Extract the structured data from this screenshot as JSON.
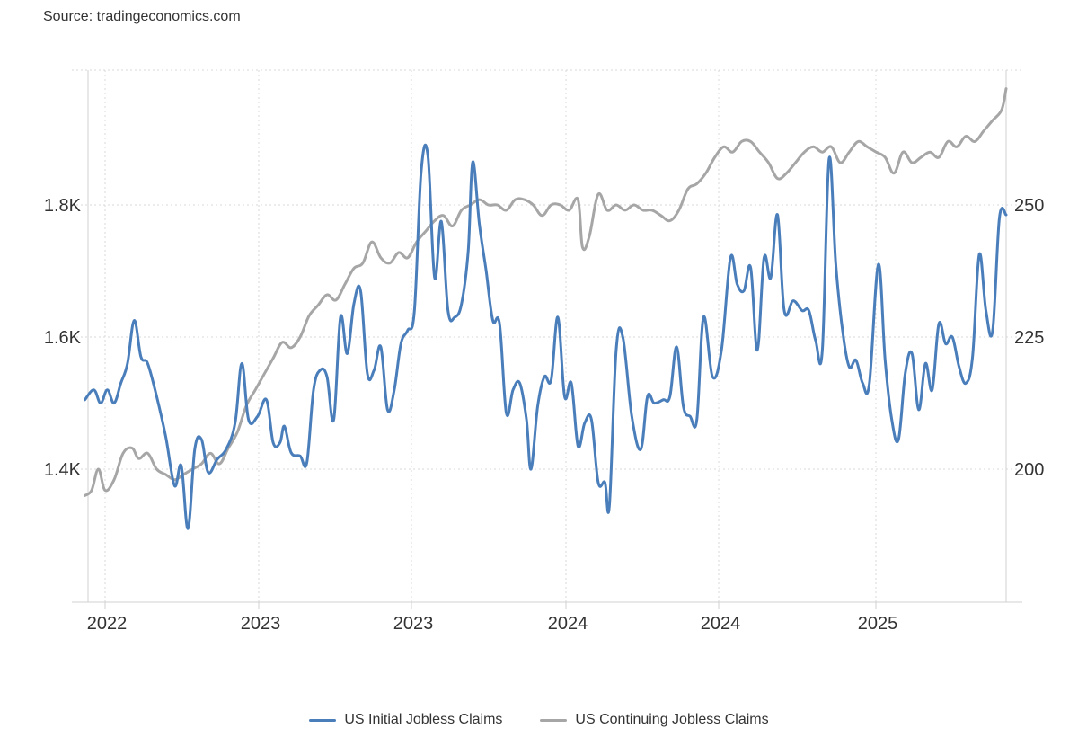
{
  "source": "Source: tradingeconomics.com",
  "chart_data": {
    "type": "line",
    "title": "",
    "xlabel": "",
    "ylabel": "",
    "x_tick_labels": [
      "2022",
      "2023",
      "2023",
      "2024",
      "2024",
      "2025"
    ],
    "y_left_ticks": [
      "1.4K",
      "1.6K",
      "1.8K"
    ],
    "y_right_ticks": [
      "200",
      "225",
      "250"
    ],
    "y_left_range": [
      1200,
      2010
    ],
    "y_right_range": [
      175,
      275
    ],
    "x_range": [
      2021.9,
      2025.85
    ],
    "grid": true,
    "legend_position": "bottom",
    "series": [
      {
        "name": "US Initial Jobless Claims",
        "axis": "left",
        "color": "#4a7ebb",
        "points": [
          [
            2021.91,
            1505
          ],
          [
            2021.95,
            1520
          ],
          [
            2021.98,
            1500
          ],
          [
            2022.01,
            1520
          ],
          [
            2022.04,
            1500
          ],
          [
            2022.07,
            1530
          ],
          [
            2022.1,
            1560
          ],
          [
            2022.13,
            1625
          ],
          [
            2022.16,
            1570
          ],
          [
            2022.19,
            1560
          ],
          [
            2022.23,
            1510
          ],
          [
            2022.27,
            1450
          ],
          [
            2022.31,
            1375
          ],
          [
            2022.34,
            1405
          ],
          [
            2022.37,
            1310
          ],
          [
            2022.4,
            1430
          ],
          [
            2022.43,
            1445
          ],
          [
            2022.46,
            1395
          ],
          [
            2022.5,
            1415
          ],
          [
            2022.54,
            1430
          ],
          [
            2022.58,
            1470
          ],
          [
            2022.61,
            1560
          ],
          [
            2022.64,
            1475
          ],
          [
            2022.68,
            1480
          ],
          [
            2022.72,
            1505
          ],
          [
            2022.75,
            1440
          ],
          [
            2022.78,
            1440
          ],
          [
            2022.8,
            1465
          ],
          [
            2022.83,
            1425
          ],
          [
            2022.87,
            1420
          ],
          [
            2022.9,
            1410
          ],
          [
            2022.93,
            1520
          ],
          [
            2022.96,
            1550
          ],
          [
            2022.99,
            1540
          ],
          [
            2023.02,
            1475
          ],
          [
            2023.05,
            1630
          ],
          [
            2023.08,
            1575
          ],
          [
            2023.11,
            1650
          ],
          [
            2023.14,
            1670
          ],
          [
            2023.17,
            1545
          ],
          [
            2023.2,
            1550
          ],
          [
            2023.23,
            1585
          ],
          [
            2023.26,
            1490
          ],
          [
            2023.29,
            1520
          ],
          [
            2023.32,
            1590
          ],
          [
            2023.35,
            1610
          ],
          [
            2023.38,
            1640
          ],
          [
            2023.41,
            1850
          ],
          [
            2023.44,
            1875
          ],
          [
            2023.47,
            1690
          ],
          [
            2023.5,
            1775
          ],
          [
            2023.53,
            1640
          ],
          [
            2023.56,
            1630
          ],
          [
            2023.59,
            1650
          ],
          [
            2023.62,
            1730
          ],
          [
            2023.64,
            1865
          ],
          [
            2023.67,
            1770
          ],
          [
            2023.7,
            1700
          ],
          [
            2023.73,
            1625
          ],
          [
            2023.76,
            1620
          ],
          [
            2023.79,
            1485
          ],
          [
            2023.82,
            1520
          ],
          [
            2023.85,
            1530
          ],
          [
            2023.88,
            1475
          ],
          [
            2023.9,
            1400
          ],
          [
            2023.93,
            1495
          ],
          [
            2023.96,
            1540
          ],
          [
            2023.99,
            1535
          ],
          [
            2024.02,
            1630
          ],
          [
            2024.05,
            1510
          ],
          [
            2024.08,
            1530
          ],
          [
            2024.11,
            1435
          ],
          [
            2024.14,
            1470
          ],
          [
            2024.17,
            1475
          ],
          [
            2024.2,
            1380
          ],
          [
            2024.23,
            1380
          ],
          [
            2024.25,
            1345
          ],
          [
            2024.28,
            1580
          ],
          [
            2024.31,
            1600
          ],
          [
            2024.35,
            1480
          ],
          [
            2024.39,
            1430
          ],
          [
            2024.42,
            1510
          ],
          [
            2024.45,
            1500
          ],
          [
            2024.49,
            1505
          ],
          [
            2024.52,
            1510
          ],
          [
            2024.55,
            1585
          ],
          [
            2024.58,
            1495
          ],
          [
            2024.61,
            1480
          ],
          [
            2024.64,
            1475
          ],
          [
            2024.67,
            1630
          ],
          [
            2024.71,
            1540
          ],
          [
            2024.75,
            1580
          ],
          [
            2024.79,
            1720
          ],
          [
            2024.82,
            1680
          ],
          [
            2024.85,
            1670
          ],
          [
            2024.88,
            1705
          ],
          [
            2024.91,
            1580
          ],
          [
            2024.94,
            1720
          ],
          [
            2024.97,
            1690
          ],
          [
            2025.0,
            1785
          ],
          [
            2025.03,
            1640
          ],
          [
            2025.07,
            1655
          ],
          [
            2025.11,
            1640
          ],
          [
            2025.14,
            1640
          ],
          [
            2025.17,
            1595
          ],
          [
            2025.2,
            1580
          ],
          [
            2025.23,
            1870
          ],
          [
            2025.26,
            1710
          ],
          [
            2025.29,
            1610
          ],
          [
            2025.32,
            1555
          ],
          [
            2025.35,
            1565
          ],
          [
            2025.38,
            1530
          ],
          [
            2025.41,
            1530
          ],
          [
            2025.45,
            1710
          ],
          [
            2025.48,
            1565
          ],
          [
            2025.51,
            1475
          ],
          [
            2025.54,
            1445
          ],
          [
            2025.57,
            1545
          ],
          [
            2025.6,
            1575
          ],
          [
            2025.63,
            1490
          ],
          [
            2025.66,
            1560
          ],
          [
            2025.69,
            1520
          ],
          [
            2025.72,
            1620
          ],
          [
            2025.75,
            1590
          ],
          [
            2025.78,
            1600
          ],
          [
            2025.81,
            1555
          ],
          [
            2025.84,
            1530
          ],
          [
            2025.87,
            1570
          ],
          [
            2025.9,
            1725
          ],
          [
            2025.93,
            1640
          ],
          [
            2025.96,
            1610
          ],
          [
            2025.99,
            1780
          ],
          [
            2026.02,
            1785
          ]
        ]
      },
      {
        "name": "US Continuing Jobless Claims",
        "axis": "right",
        "color": "#a6a6a6",
        "points": [
          [
            2021.91,
            195
          ],
          [
            2021.94,
            196
          ],
          [
            2021.97,
            200
          ],
          [
            2022.0,
            196
          ],
          [
            2022.04,
            198
          ],
          [
            2022.08,
            203
          ],
          [
            2022.12,
            204
          ],
          [
            2022.15,
            202
          ],
          [
            2022.19,
            203
          ],
          [
            2022.23,
            200
          ],
          [
            2022.27,
            199
          ],
          [
            2022.31,
            198
          ],
          [
            2022.35,
            199
          ],
          [
            2022.39,
            200
          ],
          [
            2022.43,
            201
          ],
          [
            2022.47,
            203
          ],
          [
            2022.51,
            201
          ],
          [
            2022.55,
            204
          ],
          [
            2022.59,
            207
          ],
          [
            2022.63,
            212
          ],
          [
            2022.67,
            215
          ],
          [
            2022.71,
            218
          ],
          [
            2022.75,
            221
          ],
          [
            2022.79,
            224
          ],
          [
            2022.83,
            223
          ],
          [
            2022.87,
            225
          ],
          [
            2022.91,
            229
          ],
          [
            2022.95,
            231
          ],
          [
            2022.99,
            233
          ],
          [
            2023.03,
            232
          ],
          [
            2023.07,
            235
          ],
          [
            2023.11,
            238
          ],
          [
            2023.15,
            239
          ],
          [
            2023.19,
            243
          ],
          [
            2023.23,
            240
          ],
          [
            2023.27,
            239
          ],
          [
            2023.31,
            241
          ],
          [
            2023.35,
            240
          ],
          [
            2023.39,
            243
          ],
          [
            2023.43,
            245
          ],
          [
            2023.47,
            247
          ],
          [
            2023.51,
            248
          ],
          [
            2023.55,
            246
          ],
          [
            2023.59,
            249
          ],
          [
            2023.63,
            250
          ],
          [
            2023.67,
            251
          ],
          [
            2023.71,
            250
          ],
          [
            2023.75,
            250
          ],
          [
            2023.79,
            249
          ],
          [
            2023.83,
            251
          ],
          [
            2023.87,
            251
          ],
          [
            2023.91,
            250
          ],
          [
            2023.95,
            248
          ],
          [
            2023.99,
            250
          ],
          [
            2024.03,
            250
          ],
          [
            2024.07,
            249
          ],
          [
            2024.11,
            251
          ],
          [
            2024.13,
            242
          ],
          [
            2024.16,
            244
          ],
          [
            2024.2,
            252
          ],
          [
            2024.24,
            249
          ],
          [
            2024.28,
            250
          ],
          [
            2024.32,
            249
          ],
          [
            2024.36,
            250
          ],
          [
            2024.4,
            249
          ],
          [
            2024.44,
            249
          ],
          [
            2024.48,
            248
          ],
          [
            2024.52,
            247
          ],
          [
            2024.56,
            249
          ],
          [
            2024.6,
            253
          ],
          [
            2024.64,
            254
          ],
          [
            2024.68,
            256
          ],
          [
            2024.72,
            259
          ],
          [
            2024.76,
            261
          ],
          [
            2024.8,
            260
          ],
          [
            2024.84,
            262
          ],
          [
            2024.88,
            262
          ],
          [
            2024.92,
            260
          ],
          [
            2024.96,
            258
          ],
          [
            2025.0,
            255
          ],
          [
            2025.04,
            256
          ],
          [
            2025.08,
            258
          ],
          [
            2025.12,
            260
          ],
          [
            2025.16,
            261
          ],
          [
            2025.2,
            260
          ],
          [
            2025.24,
            261
          ],
          [
            2025.28,
            258
          ],
          [
            2025.32,
            260
          ],
          [
            2025.36,
            262
          ],
          [
            2025.4,
            261
          ],
          [
            2025.44,
            260
          ],
          [
            2025.48,
            259
          ],
          [
            2025.52,
            256
          ],
          [
            2025.56,
            260
          ],
          [
            2025.6,
            258
          ],
          [
            2025.64,
            259
          ],
          [
            2025.68,
            260
          ],
          [
            2025.72,
            259
          ],
          [
            2025.76,
            262
          ],
          [
            2025.8,
            261
          ],
          [
            2025.84,
            263
          ],
          [
            2025.88,
            262
          ],
          [
            2025.92,
            264
          ],
          [
            2025.96,
            266
          ],
          [
            2026.0,
            268
          ],
          [
            2026.02,
            272
          ]
        ]
      }
    ]
  }
}
